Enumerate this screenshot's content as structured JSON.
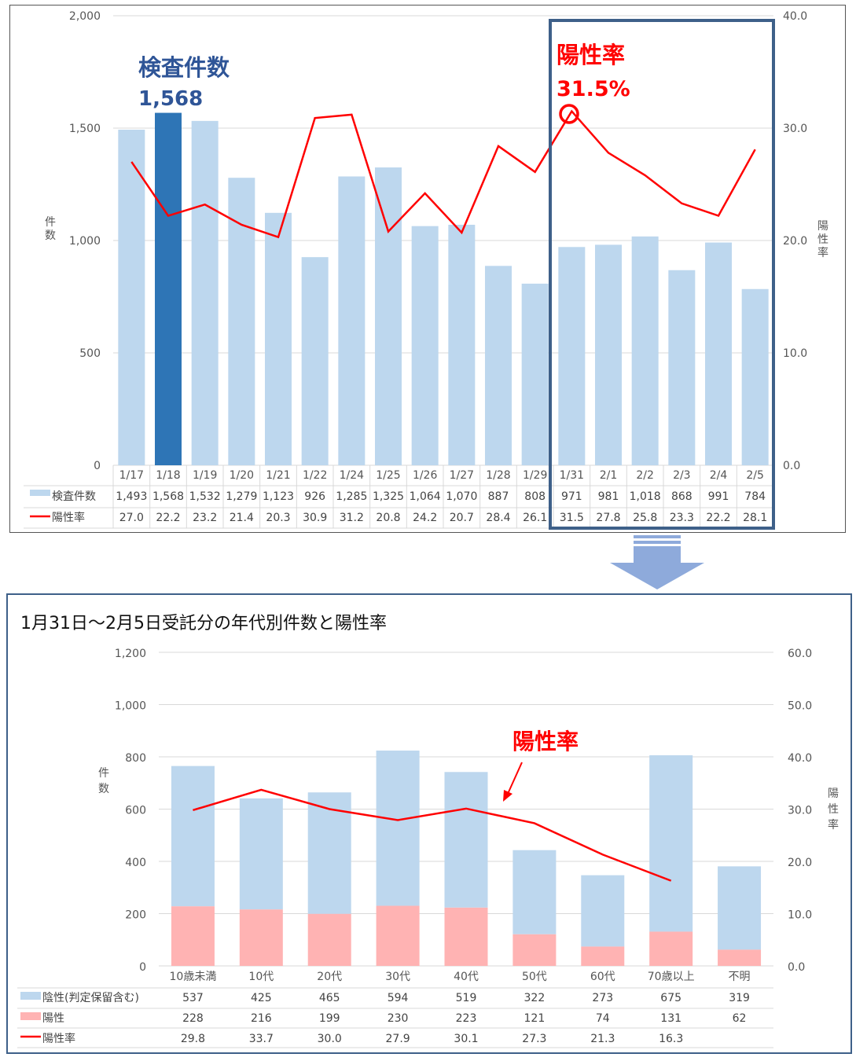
{
  "top_chart": {
    "colors": {
      "bar": "#bdd7ee",
      "bar_highlight": "#2e75b6",
      "line": "#ff0000",
      "box": "#3e6089",
      "annot_blue": "#2f5597"
    },
    "y_left_axis_label": "件数",
    "y_right_axis_label": "陽性率",
    "annotation_tests_title": "検査件数",
    "annotation_tests_value": "1,568",
    "annotation_rate_title": "陽性率",
    "annotation_rate_value": "31.5%",
    "left_ticks": [
      "2,000",
      "1,500",
      "1,000",
      "500",
      "0"
    ],
    "right_ticks": [
      "40.0",
      "30.0",
      "20.0",
      "10.0",
      "0.0"
    ],
    "legend_tests": "検査件数",
    "legend_rate": "陽性率",
    "table_tests": [
      "1,493",
      "1,568",
      "1,532",
      "1,279",
      "1,123",
      "926",
      "1,285",
      "1,325",
      "1,064",
      "1,070",
      "887",
      "808",
      "971",
      "981",
      "1,018",
      "868",
      "991",
      "784"
    ],
    "table_rates": [
      "27.0",
      "22.2",
      "23.2",
      "21.4",
      "20.3",
      "30.9",
      "31.2",
      "20.8",
      "24.2",
      "20.7",
      "28.4",
      "26.1",
      "31.5",
      "27.8",
      "25.8",
      "23.3",
      "22.2",
      "28.1"
    ]
  },
  "bottom_chart": {
    "title": "1月31日～2月5日受託分の年代別件数と陽性率",
    "colors": {
      "bar_total": "#bdd7ee",
      "bar_positive": "#ffb3b3",
      "line": "#ff0000"
    },
    "y_left_axis_label": "件数",
    "y_right_axis_label": "陽性率",
    "annotation_rate": "陽性率",
    "left_ticks": [
      "1,200",
      "1,000",
      "800",
      "600",
      "400",
      "200",
      "0"
    ],
    "right_ticks": [
      "60.0",
      "50.0",
      "40.0",
      "30.0",
      "20.0",
      "10.0",
      "0.0"
    ],
    "legend_negative": "陰性(判定保留含む)",
    "legend_positive": "陽性",
    "legend_rate": "陽性率",
    "table_negative": [
      "537",
      "425",
      "465",
      "594",
      "519",
      "322",
      "273",
      "675",
      "319"
    ],
    "table_positive": [
      "228",
      "216",
      "199",
      "230",
      "223",
      "121",
      "74",
      "131",
      "62"
    ],
    "table_rates": [
      "29.8",
      "33.7",
      "30.0",
      "27.9",
      "30.1",
      "27.3",
      "21.3",
      "16.3",
      ""
    ]
  },
  "chart_data": [
    {
      "type": "bar",
      "categories": [
        "1/17",
        "1/18",
        "1/19",
        "1/20",
        "1/21",
        "1/22",
        "1/24",
        "1/25",
        "1/26",
        "1/27",
        "1/28",
        "1/29",
        "1/31",
        "2/1",
        "2/2",
        "2/3",
        "2/4",
        "2/5"
      ],
      "series": [
        {
          "name": "検査件数",
          "type": "bar",
          "axis": "left",
          "values": [
            1493,
            1568,
            1532,
            1279,
            1123,
            926,
            1285,
            1325,
            1064,
            1070,
            887,
            808,
            971,
            981,
            1018,
            868,
            991,
            784
          ]
        },
        {
          "name": "陽性率",
          "type": "line",
          "axis": "right",
          "values": [
            27.0,
            22.2,
            23.2,
            21.4,
            20.3,
            30.9,
            31.2,
            20.8,
            24.2,
            20.7,
            28.4,
            26.1,
            31.5,
            27.8,
            25.8,
            23.3,
            22.2,
            28.1
          ]
        }
      ],
      "ylim": [
        0,
        2000
      ],
      "y2lim": [
        0,
        40
      ],
      "ylabel": "件数",
      "y2label": "陽性率",
      "highlight_category": "1/18"
    },
    {
      "type": "bar",
      "title": "1月31日～2月5日受託分の年代別件数と陽性率",
      "categories": [
        "10歳未満",
        "10代",
        "20代",
        "30代",
        "40代",
        "50代",
        "60代",
        "70歳以上",
        "不明"
      ],
      "series": [
        {
          "name": "陽性",
          "type": "stacked-bar",
          "axis": "left",
          "values": [
            228,
            216,
            199,
            230,
            223,
            121,
            74,
            131,
            62
          ]
        },
        {
          "name": "陰性(判定保留含む)",
          "type": "stacked-bar",
          "axis": "left",
          "values": [
            537,
            425,
            465,
            594,
            519,
            322,
            273,
            675,
            319
          ]
        },
        {
          "name": "陽性率",
          "type": "line",
          "axis": "right",
          "values": [
            29.8,
            33.7,
            30.0,
            27.9,
            30.1,
            27.3,
            21.3,
            16.3,
            null
          ]
        }
      ],
      "ylim": [
        0,
        1200
      ],
      "y2lim": [
        0,
        60
      ],
      "ylabel": "件数",
      "y2label": "陽性率"
    }
  ]
}
